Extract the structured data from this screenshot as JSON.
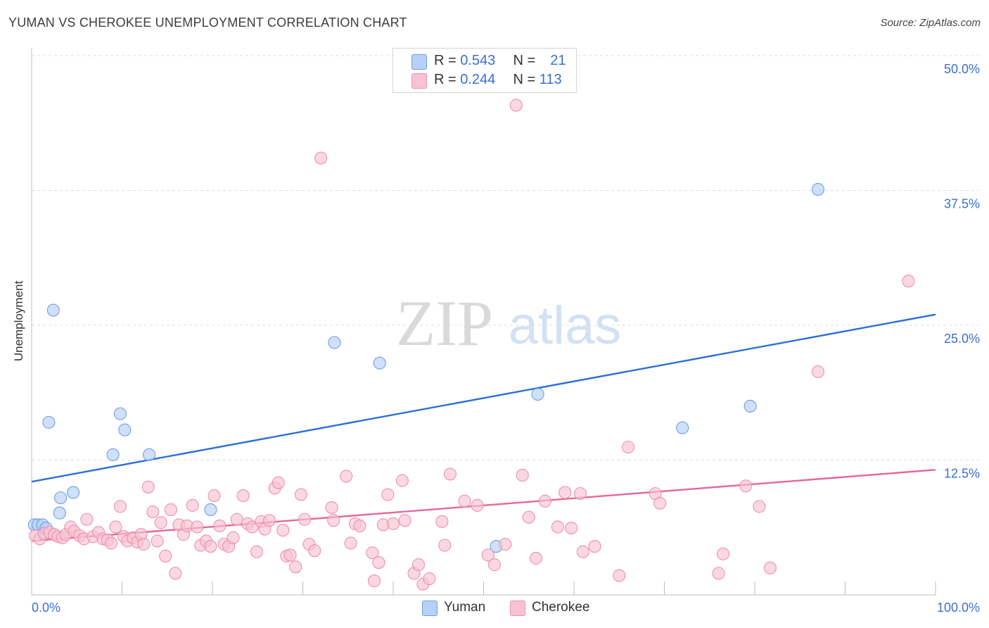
{
  "title": "YUMAN VS CHEROKEE UNEMPLOYMENT CORRELATION CHART",
  "source": "Source: ZipAtlas.com",
  "watermark": {
    "zip": "ZIP",
    "atlas": "atlas"
  },
  "legend": {
    "rows": [
      {
        "r_label": "R =",
        "r_value": "0.543",
        "n_label": "N =",
        "n_value": "21"
      },
      {
        "r_label": "R =",
        "r_value": "0.244",
        "n_label": "N =",
        "n_value": "113"
      }
    ]
  },
  "bottom_legend": {
    "yuman": "Yuman",
    "cherokee": "Cherokee"
  },
  "chart_data": {
    "type": "scatter",
    "title": "YUMAN VS CHEROKEE UNEMPLOYMENT CORRELATION CHART",
    "xlabel": "",
    "ylabel": "Unemployment",
    "xlim": [
      0,
      100
    ],
    "ylim": [
      0,
      50
    ],
    "x_tick_labels": {
      "left": "0.0%",
      "right": "100.0%"
    },
    "y_ticks": [
      {
        "value": 12.5,
        "label": "12.5%"
      },
      {
        "value": 25.0,
        "label": "25.0%"
      },
      {
        "value": 37.5,
        "label": "37.5%"
      },
      {
        "value": 50.0,
        "label": "50.0%"
      }
    ],
    "grid": true,
    "legend_position": "top-center",
    "series": [
      {
        "name": "Yuman",
        "color": "#6d9ee8",
        "fill": "#b7d0f5",
        "line_color": "#2b6fd6",
        "r": 0.543,
        "n": 21,
        "trend": {
          "x": [
            0,
            100
          ],
          "y": [
            10.5,
            26.0
          ]
        },
        "points": [
          [
            0.3,
            6.5
          ],
          [
            0.7,
            6.5
          ],
          [
            1.2,
            6.5
          ],
          [
            1.6,
            6.2
          ],
          [
            1.9,
            16.0
          ],
          [
            2.4,
            26.4
          ],
          [
            3.1,
            7.6
          ],
          [
            3.2,
            9.0
          ],
          [
            4.6,
            9.5
          ],
          [
            9.0,
            13.0
          ],
          [
            9.8,
            16.8
          ],
          [
            10.3,
            15.3
          ],
          [
            13.0,
            13.0
          ],
          [
            19.8,
            7.9
          ],
          [
            33.5,
            23.4
          ],
          [
            38.5,
            21.5
          ],
          [
            51.4,
            4.5
          ],
          [
            56.0,
            18.6
          ],
          [
            72.0,
            15.5
          ],
          [
            79.5,
            17.5
          ],
          [
            87.0,
            37.6
          ]
        ]
      },
      {
        "name": "Cherokee",
        "color": "#ef8fae",
        "fill": "#f7c3d3",
        "line_color": "#e6679a",
        "r": 0.244,
        "n": 113,
        "trend": {
          "x": [
            0,
            100
          ],
          "y": [
            5.0,
            11.6
          ]
        },
        "points": [
          [
            0.4,
            5.5
          ],
          [
            0.9,
            5.2
          ],
          [
            1.4,
            5.7
          ],
          [
            2.0,
            5.8
          ],
          [
            2.5,
            5.6
          ],
          [
            2.9,
            5.4
          ],
          [
            3.4,
            5.3
          ],
          [
            3.8,
            5.6
          ],
          [
            4.3,
            6.3
          ],
          [
            4.7,
            5.9
          ],
          [
            5.3,
            5.5
          ],
          [
            5.8,
            5.2
          ],
          [
            6.1,
            7.0
          ],
          [
            6.8,
            5.4
          ],
          [
            7.4,
            5.8
          ],
          [
            7.9,
            5.2
          ],
          [
            8.4,
            5.1
          ],
          [
            8.8,
            4.8
          ],
          [
            9.3,
            6.3
          ],
          [
            9.8,
            8.2
          ],
          [
            10.2,
            5.4
          ],
          [
            10.6,
            5.0
          ],
          [
            11.2,
            5.3
          ],
          [
            11.7,
            4.9
          ],
          [
            12.1,
            5.6
          ],
          [
            12.4,
            4.7
          ],
          [
            12.9,
            10.0
          ],
          [
            13.4,
            7.7
          ],
          [
            13.9,
            5.0
          ],
          [
            14.3,
            6.7
          ],
          [
            14.8,
            3.6
          ],
          [
            15.4,
            7.9
          ],
          [
            15.9,
            2.0
          ],
          [
            16.3,
            6.5
          ],
          [
            16.8,
            5.6
          ],
          [
            17.2,
            6.4
          ],
          [
            17.8,
            8.3
          ],
          [
            18.3,
            6.3
          ],
          [
            18.7,
            4.6
          ],
          [
            19.3,
            5.0
          ],
          [
            19.8,
            4.5
          ],
          [
            20.2,
            9.2
          ],
          [
            20.8,
            6.4
          ],
          [
            21.3,
            4.7
          ],
          [
            21.8,
            4.5
          ],
          [
            22.3,
            5.3
          ],
          [
            22.7,
            7.0
          ],
          [
            23.4,
            9.2
          ],
          [
            23.9,
            6.6
          ],
          [
            24.4,
            6.3
          ],
          [
            24.9,
            4.0
          ],
          [
            25.4,
            6.8
          ],
          [
            25.8,
            6.1
          ],
          [
            26.3,
            6.9
          ],
          [
            26.9,
            9.9
          ],
          [
            27.3,
            10.4
          ],
          [
            27.8,
            6.0
          ],
          [
            28.2,
            3.6
          ],
          [
            28.6,
            3.7
          ],
          [
            29.2,
            2.6
          ],
          [
            29.8,
            9.3
          ],
          [
            30.2,
            7.0
          ],
          [
            30.7,
            4.7
          ],
          [
            31.3,
            4.1
          ],
          [
            32.0,
            40.5
          ],
          [
            33.2,
            8.1
          ],
          [
            33.4,
            6.9
          ],
          [
            34.8,
            11.0
          ],
          [
            35.3,
            4.8
          ],
          [
            35.8,
            6.6
          ],
          [
            36.3,
            6.4
          ],
          [
            37.7,
            3.9
          ],
          [
            37.9,
            1.3
          ],
          [
            38.4,
            3.0
          ],
          [
            38.9,
            6.5
          ],
          [
            39.4,
            9.3
          ],
          [
            40.0,
            6.6
          ],
          [
            41.0,
            10.6
          ],
          [
            41.3,
            6.9
          ],
          [
            42.3,
            2.0
          ],
          [
            42.8,
            2.8
          ],
          [
            43.3,
            1.0
          ],
          [
            44.0,
            1.5
          ],
          [
            45.4,
            6.8
          ],
          [
            45.7,
            4.6
          ],
          [
            46.3,
            11.2
          ],
          [
            47.9,
            8.7
          ],
          [
            49.3,
            8.3
          ],
          [
            50.5,
            3.7
          ],
          [
            51.2,
            2.8
          ],
          [
            52.4,
            4.7
          ],
          [
            53.6,
            45.4
          ],
          [
            54.3,
            11.1
          ],
          [
            55.0,
            7.2
          ],
          [
            55.8,
            3.4
          ],
          [
            56.8,
            8.7
          ],
          [
            58.2,
            6.3
          ],
          [
            59.0,
            9.5
          ],
          [
            59.7,
            6.2
          ],
          [
            60.7,
            9.4
          ],
          [
            61.0,
            4.0
          ],
          [
            62.3,
            4.5
          ],
          [
            65.0,
            1.8
          ],
          [
            66.0,
            13.7
          ],
          [
            69.0,
            9.4
          ],
          [
            69.5,
            8.5
          ],
          [
            76.0,
            2.0
          ],
          [
            76.5,
            3.8
          ],
          [
            79.0,
            10.1
          ],
          [
            80.5,
            8.2
          ],
          [
            81.7,
            2.5
          ],
          [
            87.0,
            20.7
          ],
          [
            97.0,
            29.1
          ]
        ]
      }
    ]
  }
}
